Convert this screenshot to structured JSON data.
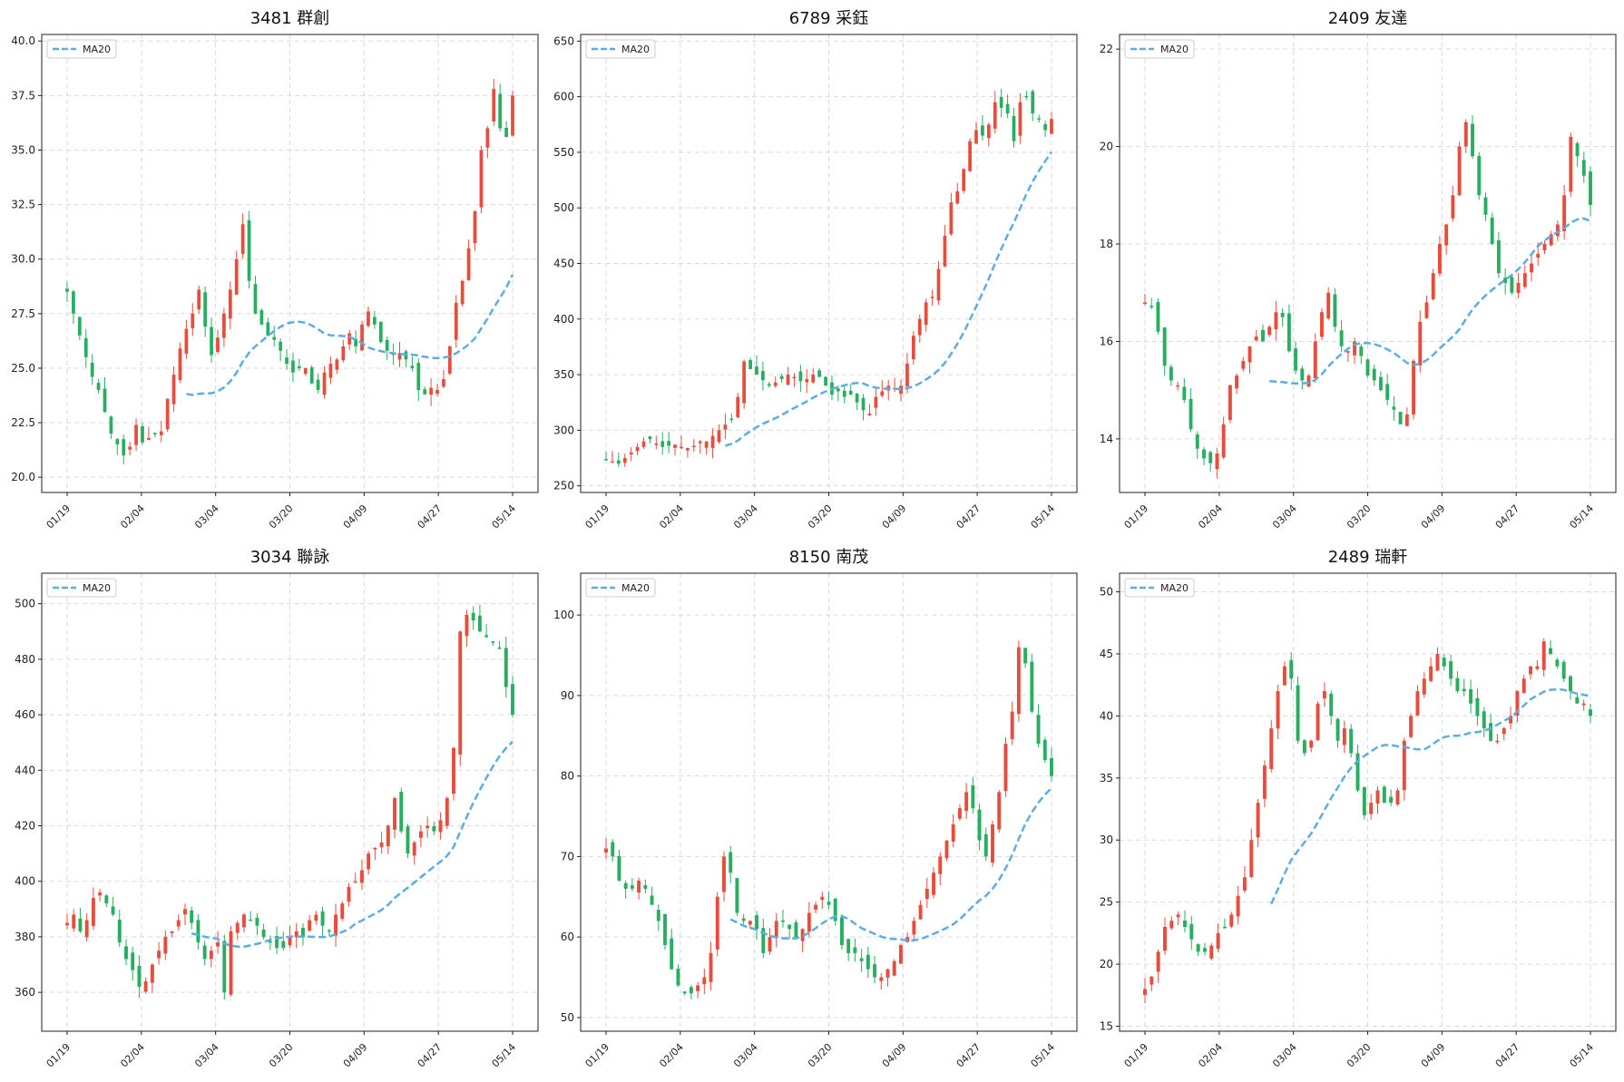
{
  "colors": {
    "up": "#e74c3c",
    "down": "#27ae60",
    "ma": "#5dade2",
    "grid": "#d9d9d9",
    "axis": "#222222"
  },
  "legend": {
    "ma_label": "MA20"
  },
  "chart_data": [
    {
      "type": "candlestick",
      "title": "3481 群創",
      "xlabels": [
        "01/19",
        "02/04",
        "03/04",
        "03/20",
        "04/09",
        "04/27",
        "05/14"
      ],
      "yticks": [
        20.0,
        22.5,
        25.0,
        27.5,
        30.0,
        32.5,
        35.0,
        37.5,
        40.0
      ],
      "ytick_labels": [
        "20.0",
        "22.5",
        "25.0",
        "27.5",
        "30.0",
        "32.5",
        "35.0",
        "37.5",
        "40.0"
      ],
      "ylim": [
        19.3,
        40.3
      ],
      "close": [
        28.5,
        27.5,
        26.5,
        25.5,
        24.6,
        24.0,
        23.0,
        22.0,
        21.5,
        21.0,
        21.4,
        22.4,
        21.6,
        21.8,
        22.0,
        22.1,
        23.6,
        24.7,
        25.9,
        26.8,
        27.5,
        28.6,
        26.9,
        25.6,
        26.4,
        27.5,
        28.6,
        30.0,
        31.6,
        29.0,
        27.5,
        27.0,
        26.5,
        26.3,
        25.8,
        25.2,
        24.8,
        25.0,
        25.0,
        24.3,
        24.0,
        24.8,
        25.2,
        25.4,
        26.0,
        26.6,
        26.0,
        27.0,
        27.6,
        27.0,
        26.2,
        25.8,
        25.6,
        25.7,
        25.4,
        25.0,
        24.0,
        23.8,
        24.1,
        24.0,
        24.5,
        26.0,
        28.0,
        29.0,
        30.5,
        32.2,
        35.0,
        36.0,
        37.8,
        36.0,
        35.6,
        37.5
      ]
    },
    {
      "type": "candlestick",
      "title": "6789 采鈺",
      "xlabels": [
        "01/19",
        "02/04",
        "03/04",
        "03/20",
        "04/09",
        "04/27",
        "05/14"
      ],
      "yticks": [
        250,
        300,
        350,
        400,
        450,
        500,
        550,
        600,
        650
      ],
      "ytick_labels": [
        "250",
        "300",
        "350",
        "400",
        "450",
        "500",
        "550",
        "600",
        "650"
      ],
      "ylim": [
        244,
        656
      ],
      "close": [
        273,
        272,
        270,
        275,
        280,
        285,
        290,
        292,
        288,
        285,
        286,
        287,
        285,
        284,
        286,
        290,
        290,
        295,
        300,
        305,
        310,
        330,
        362,
        355,
        350,
        345,
        340,
        343,
        346,
        350,
        348,
        344,
        346,
        350,
        348,
        340,
        332,
        335,
        330,
        332,
        325,
        318,
        315,
        330,
        335,
        340,
        338,
        340,
        360,
        385,
        400,
        415,
        420,
        445,
        475,
        505,
        515,
        535,
        560,
        570,
        565,
        575,
        595,
        590,
        585,
        560,
        595,
        600,
        585,
        580,
        570,
        580
      ]
    },
    {
      "type": "candlestick",
      "title": "2409 友達",
      "xlabels": [
        "01/19",
        "02/04",
        "03/04",
        "03/20",
        "04/09",
        "04/27",
        "05/14"
      ],
      "yticks": [
        14,
        16,
        18,
        20,
        22
      ],
      "ytick_labels": [
        "14",
        "16",
        "18",
        "20",
        "22"
      ],
      "ylim": [
        12.9,
        22.3
      ],
      "close": [
        16.8,
        16.7,
        16.2,
        15.5,
        15.2,
        15.1,
        14.8,
        14.2,
        13.8,
        13.6,
        13.5,
        13.7,
        14.3,
        15.1,
        15.3,
        15.6,
        15.9,
        16.1,
        16.0,
        16.3,
        16.6,
        16.5,
        15.8,
        15.4,
        15.2,
        15.3,
        16.0,
        16.6,
        17.0,
        16.3,
        15.9,
        15.8,
        16.0,
        15.7,
        15.3,
        15.2,
        15.0,
        14.8,
        14.6,
        14.3,
        14.5,
        15.6,
        16.4,
        16.8,
        17.4,
        18.0,
        18.4,
        19.0,
        20.0,
        20.5,
        19.8,
        19.0,
        18.6,
        18.0,
        17.4,
        17.2,
        17.0,
        17.2,
        17.4,
        17.6,
        17.8,
        18.0,
        18.2,
        18.4,
        19.0,
        20.2,
        19.8,
        19.4,
        18.8
      ]
    },
    {
      "type": "candlestick",
      "title": "3034 聯詠",
      "xlabels": [
        "01/19",
        "02/04",
        "03/04",
        "03/20",
        "04/09",
        "04/27",
        "05/14"
      ],
      "yticks": [
        360,
        380,
        400,
        420,
        440,
        460,
        480,
        500
      ],
      "ytick_labels": [
        "360",
        "380",
        "400",
        "420",
        "440",
        "460",
        "480",
        "500"
      ],
      "ylim": [
        346,
        511
      ],
      "close": [
        385,
        388,
        382,
        386,
        394,
        396,
        392,
        388,
        378,
        372,
        368,
        362,
        364,
        370,
        375,
        380,
        382,
        386,
        390,
        385,
        378,
        372,
        375,
        378,
        360,
        382,
        385,
        388,
        386,
        384,
        380,
        378,
        376,
        376,
        380,
        382,
        380,
        386,
        388,
        384,
        382,
        388,
        392,
        398,
        400,
        404,
        410,
        412,
        414,
        420,
        430,
        418,
        410,
        414,
        418,
        420,
        418,
        422,
        430,
        448,
        490,
        496,
        494,
        490,
        488,
        486,
        484,
        470,
        460
      ]
    },
    {
      "type": "candlestick",
      "title": "8150 南茂",
      "xlabels": [
        "01/19",
        "02/04",
        "03/04",
        "03/20",
        "04/09",
        "04/27",
        "05/14"
      ],
      "yticks": [
        50,
        60,
        70,
        80,
        90,
        100
      ],
      "ytick_labels": [
        "50",
        "60",
        "70",
        "80",
        "90",
        "100"
      ],
      "ylim": [
        48.3,
        105.2
      ],
      "close": [
        71,
        70,
        67,
        66,
        66,
        67,
        66,
        64,
        62,
        59,
        56,
        54,
        53,
        53,
        54,
        55,
        58,
        65,
        70,
        68,
        63,
        62,
        62,
        61,
        58,
        60,
        62,
        62,
        61,
        60,
        61,
        63,
        64,
        65,
        64,
        62,
        59,
        58,
        58,
        57,
        56,
        55,
        55,
        56,
        57,
        59,
        60,
        62,
        64,
        66,
        68,
        70,
        72,
        74,
        76,
        78,
        76,
        72,
        70,
        74,
        78,
        84,
        88,
        96,
        94,
        88,
        84,
        82,
        80
      ]
    },
    {
      "type": "candlestick",
      "title": "2489 瑞軒",
      "xlabels": [
        "01/19",
        "02/04",
        "03/04",
        "03/20",
        "04/09",
        "04/27",
        "05/14"
      ],
      "yticks": [
        15,
        20,
        25,
        30,
        35,
        40,
        45,
        50
      ],
      "ytick_labels": [
        "15",
        "20",
        "25",
        "30",
        "35",
        "40",
        "45",
        "50"
      ],
      "ylim": [
        14.6,
        51.5
      ],
      "close": [
        18,
        19,
        21,
        23,
        23.5,
        24,
        23,
        22,
        21,
        21,
        21.5,
        22.5,
        23,
        24,
        25.5,
        27,
        30,
        33,
        36,
        39,
        42,
        44,
        43,
        38,
        37,
        38,
        41,
        42,
        40,
        38,
        39,
        37,
        34,
        32,
        33,
        34,
        33,
        33,
        34,
        38,
        40,
        42,
        43,
        44,
        45,
        44,
        43,
        42,
        42,
        41,
        40,
        39,
        38,
        38,
        39,
        40,
        42,
        43,
        44,
        44,
        46,
        45,
        44,
        43,
        42,
        41,
        41,
        40
      ]
    }
  ]
}
